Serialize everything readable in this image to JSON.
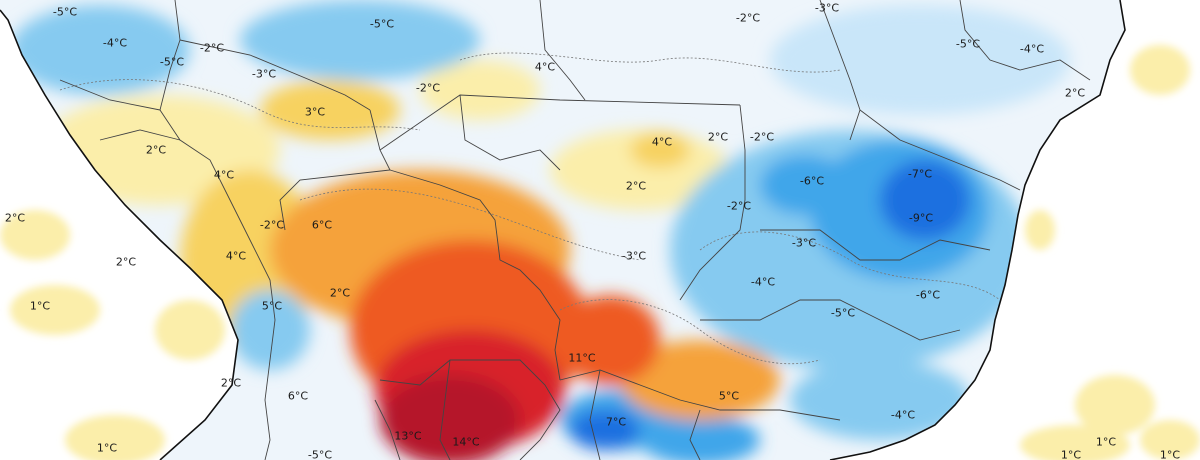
{
  "map": {
    "colors": {
      "ocean": "#ffffff",
      "land_base": "#eef5fb",
      "cold_light": "#c9e6f9",
      "cold_mid": "#86caf0",
      "cold_strong": "#3fa6ea",
      "cold_deep": "#1e6fe0",
      "warm_light": "#fbeeaa",
      "warm_mid": "#f7d261",
      "warm_orange": "#f5a23a",
      "warm_red": "#ee5a22",
      "warm_crimson": "#d8202c",
      "warm_dark": "#b5122a",
      "borders": "#444444",
      "coast": "#111111"
    },
    "labels": [
      {
        "text": "-5°C",
        "temp": -5
      },
      {
        "text": "-4°C",
        "temp": -4
      },
      {
        "text": "-2°C",
        "temp": -2
      },
      {
        "text": "-5°C",
        "temp": -5
      },
      {
        "text": "-3°C",
        "temp": -3
      },
      {
        "text": "-5°C",
        "temp": -5
      },
      {
        "text": "4°C",
        "temp": 4
      },
      {
        "text": "-2°C",
        "temp": -2
      },
      {
        "text": "-2°C",
        "temp": -2
      },
      {
        "text": "-3°C",
        "temp": -3
      },
      {
        "text": "-5°C",
        "temp": -5
      },
      {
        "text": "-4°C",
        "temp": -4
      },
      {
        "text": "2°C",
        "temp": 2
      },
      {
        "text": "3°C",
        "temp": 3
      },
      {
        "text": "2°C",
        "temp": 2
      },
      {
        "text": "4°C",
        "temp": 4
      },
      {
        "text": "2°C",
        "temp": 2
      },
      {
        "text": "-2°C",
        "temp": -2
      },
      {
        "text": "4°C",
        "temp": 4
      },
      {
        "text": "-7°C",
        "temp": -7
      },
      {
        "text": "-6°C",
        "temp": -6
      },
      {
        "text": "2°C",
        "temp": 2
      },
      {
        "text": "-9°C",
        "temp": -9
      },
      {
        "text": "-2°C",
        "temp": -2
      },
      {
        "text": "2°C",
        "temp": 2
      },
      {
        "text": "6°C",
        "temp": 6
      },
      {
        "text": "-2°C",
        "temp": -2
      },
      {
        "text": "-3°C",
        "temp": -3
      },
      {
        "text": "-3°C",
        "temp": -3
      },
      {
        "text": "2°C",
        "temp": 2
      },
      {
        "text": "4°C",
        "temp": 4
      },
      {
        "text": "-4°C",
        "temp": -4
      },
      {
        "text": "-6°C",
        "temp": -6
      },
      {
        "text": "2°C",
        "temp": 2
      },
      {
        "text": "-5°C",
        "temp": -5
      },
      {
        "text": "1°C",
        "temp": 1
      },
      {
        "text": "5°C",
        "temp": 5
      },
      {
        "text": "11°C",
        "temp": 11
      },
      {
        "text": "2°C",
        "temp": 2
      },
      {
        "text": "6°C",
        "temp": 6
      },
      {
        "text": "5°C",
        "temp": 5
      },
      {
        "text": "-4°C",
        "temp": -4
      },
      {
        "text": "7°C",
        "temp": 7
      },
      {
        "text": "13°C",
        "temp": 13
      },
      {
        "text": "14°C",
        "temp": 14
      },
      {
        "text": "-5°C",
        "temp": -5
      },
      {
        "text": "1°C",
        "temp": 1
      },
      {
        "text": "1°C",
        "temp": 1
      },
      {
        "text": "1°C",
        "temp": 1
      },
      {
        "text": "1°C",
        "temp": 1
      }
    ]
  }
}
